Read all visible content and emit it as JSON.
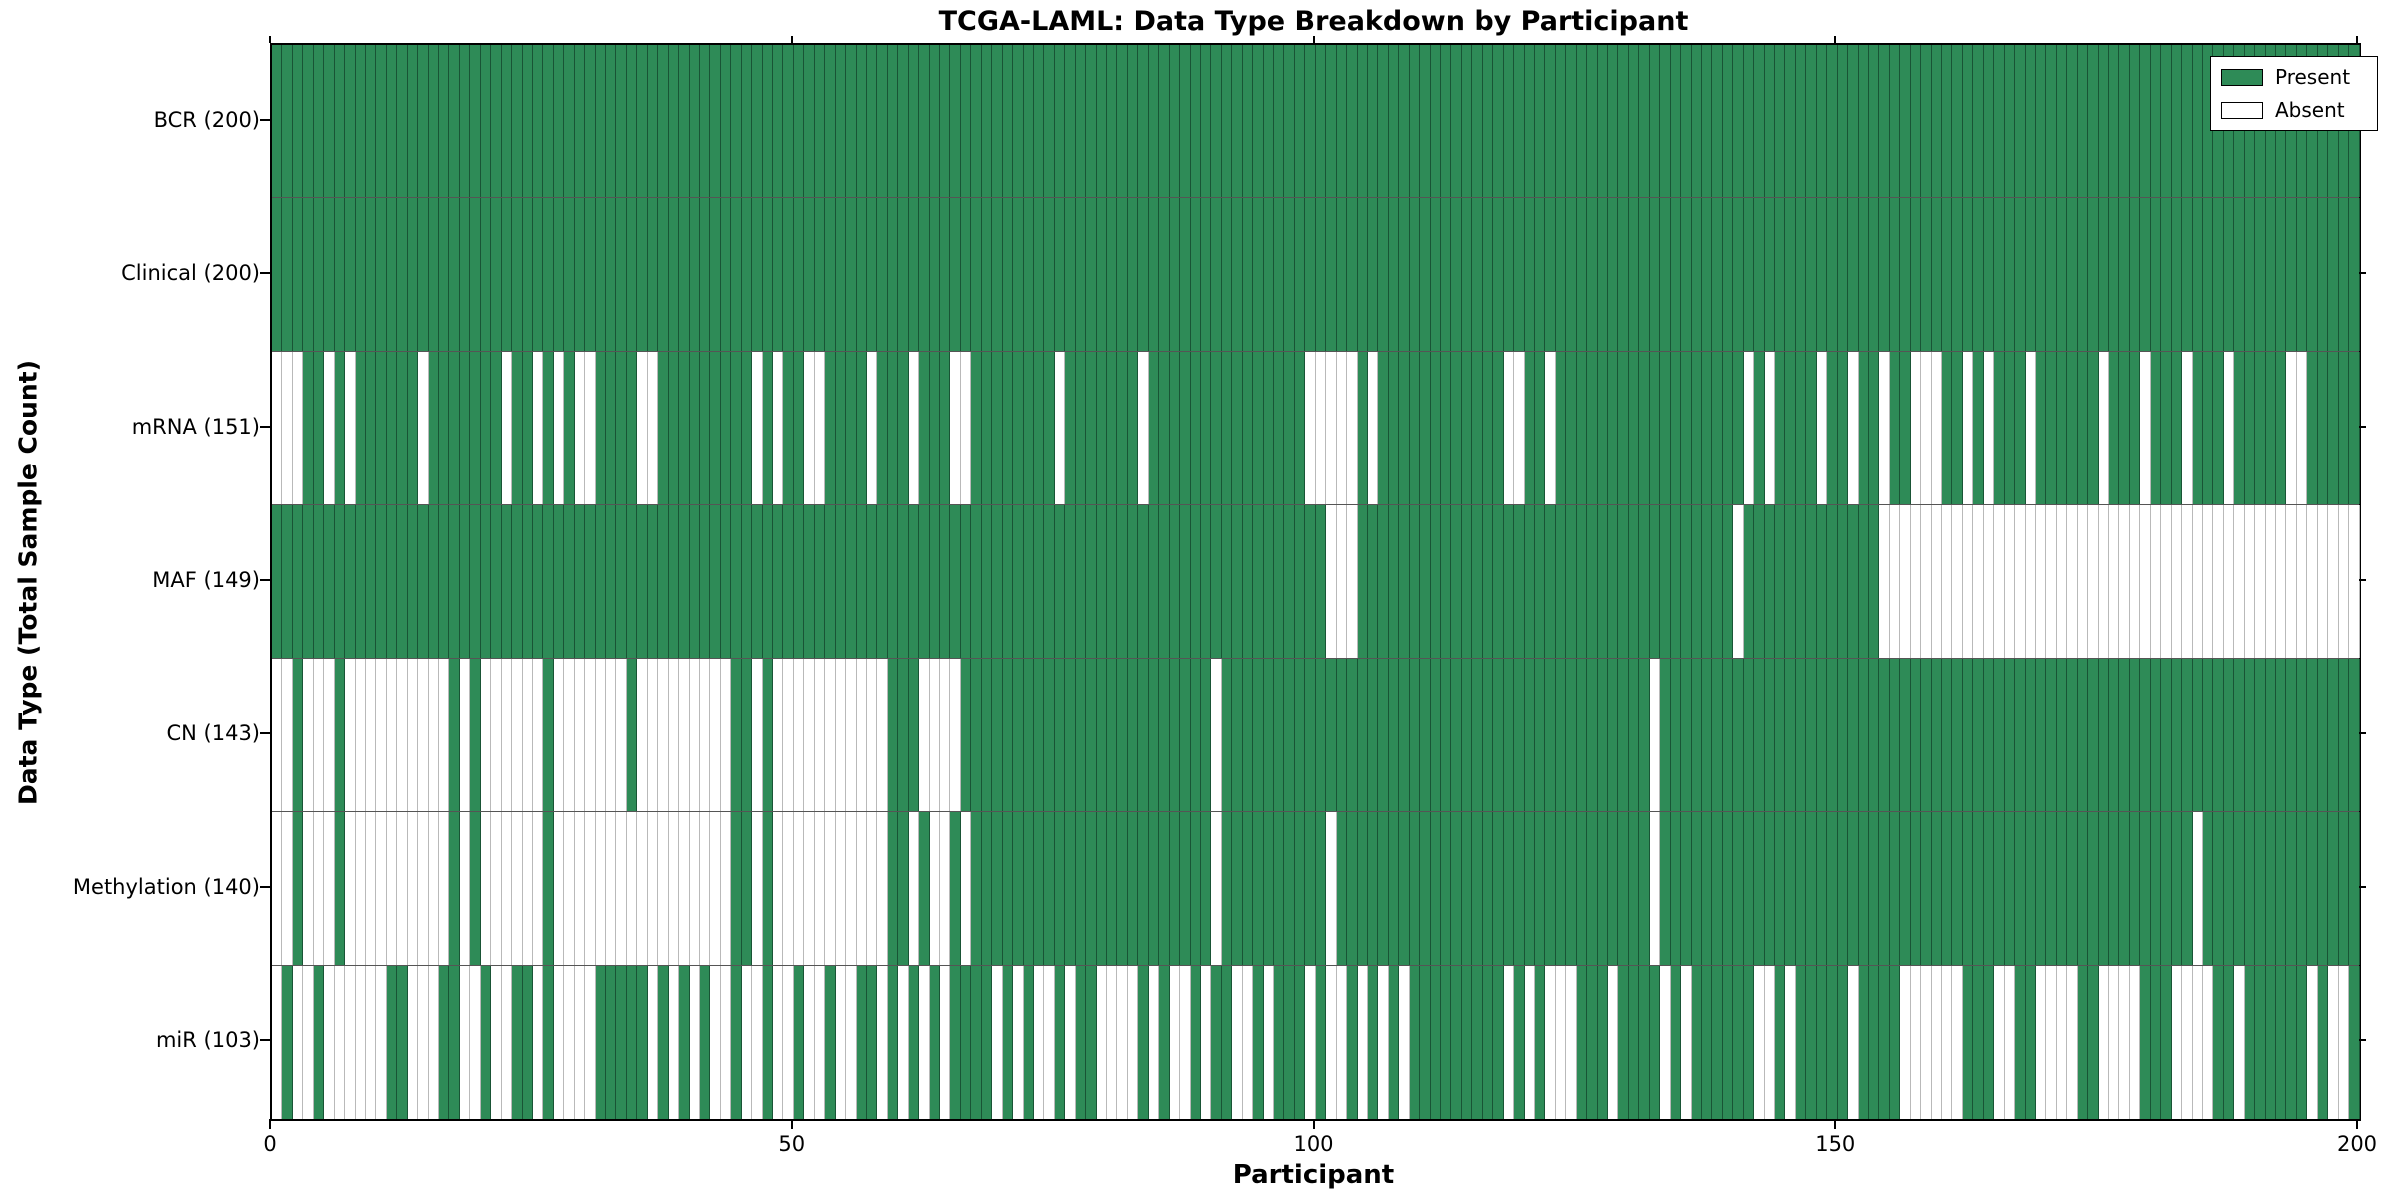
{
  "title": "TCGA-LAML: Data Type Breakdown by Participant",
  "x_axis_label": "Participant",
  "y_axis_label": "Data Type (Total Sample Count)",
  "legend": {
    "present_label": "Present",
    "absent_label": "Absent"
  },
  "colors": {
    "present": "#2e8b57",
    "absent": "#ffffff",
    "frame": "#000000",
    "row_separator": "#555555"
  },
  "chart_data": {
    "type": "heatmap",
    "title": "TCGA-LAML: Data Type Breakdown by Participant",
    "xlabel": "Participant",
    "ylabel": "Data Type (Total Sample Count)",
    "x_range": [
      0,
      200
    ],
    "x_ticks": [
      0,
      50,
      100,
      150,
      200
    ],
    "n_participants": 200,
    "grid": "row-separators",
    "legend_position": "upper-right",
    "legend": [
      {
        "label": "Present",
        "color": "#2e8b57"
      },
      {
        "label": "Absent",
        "color": "#ffffff"
      }
    ],
    "rows": [
      {
        "label": "BCR (200)",
        "present_count": 200,
        "presence": "11111111111111111111111111111111111111111111111111111111111111111111111111111111111111111111111111111111111111111111111111111111111111111111111111111111111111111111111111111111111111111111111111111111"
      },
      {
        "label": "Clinical (200)",
        "present_count": 200,
        "presence": "11111111111111111111111111111111111111111111111111111111111111111111111111111111111111111111111111111111111111111111111111111111111111111111111111111111111111111111111111111111111111111111111111111111"
      },
      {
        "label": "mRNA (151)",
        "present_count": 151,
        "presence": "00011010111111011111110110101001111001111111110101100111101110111001111111101111111011111111111111100000101111111111110011011111111111111111101011110110110110001101011101111110111011101110111110011111"
      },
      {
        "label": "MAF (149)",
        "present_count": 149,
        "presence": "11111111111111111111111111111111111111111111111111111111111111111111111111111111111111111111111111111000111111111111111111111111111111111111011111111111110000000000000000000000000000000000000000000000"
      },
      {
        "label": "CN (143)",
        "present_count": 143,
        "presence": "00100010000000000101000000100000001000000000110100000000000111000011111111111111111111111101111111111111111111111111111111111111111101111111111111111111111111111111111111111111111111111111111111111111"
      },
      {
        "label": "Methylation (140)",
        "present_count": 140,
        "presence": "00100010000000000101000000100000000000000000110100000000000110100101111111111111111111111101111111111011111111111111111111111111111101111111111111111111111111111111111111111111111111110111111111111111"
      },
      {
        "label": "miR (103)",
        "present_count": 103,
        "presence": "01001000000110001100100110100001111101010100100100100100110101010111101010010110000101001011001011101001010101111111110101000111011110101111110010111110111100000011100110000110000111000011011111101001"
      }
    ]
  }
}
